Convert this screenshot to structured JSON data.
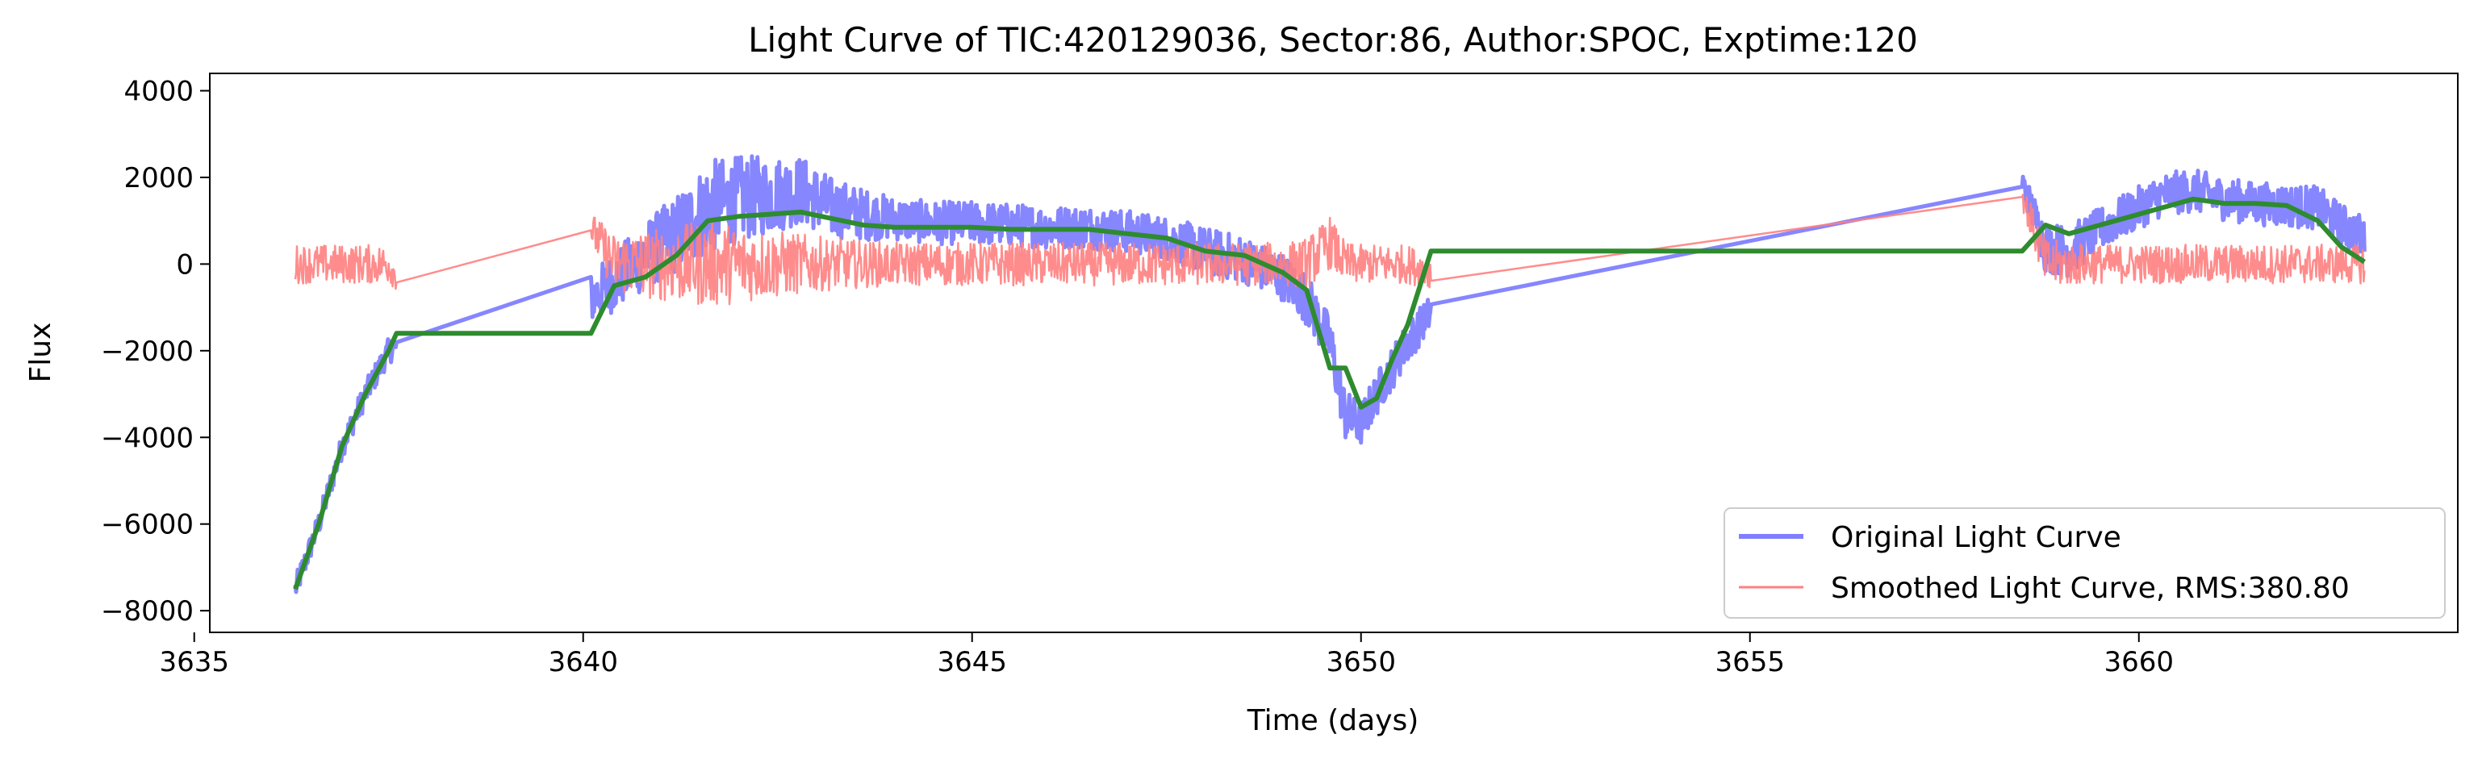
{
  "chart_data": {
    "type": "line",
    "title": "Light Curve of TIC:420129036, Sector:86, Author:SPOC, Exptime:120",
    "xlabel": "Time (days)",
    "ylabel": "Flux",
    "xlim": [
      3635.2,
      3664.1
    ],
    "ylim": [
      -8500,
      4400
    ],
    "xticks": [
      3635,
      3640,
      3645,
      3650,
      3655,
      3660
    ],
    "yticks": [
      -8000,
      -6000,
      -4000,
      -2000,
      0,
      2000,
      4000
    ],
    "grid": false,
    "legend_position": "lower-right",
    "series": [
      {
        "name": "Original Light Curve",
        "color": "#7f7fff",
        "style": "noisy-band",
        "x": [
          3636.3,
          3636.6,
          3636.9,
          3637.2,
          3637.5,
          3637.6,
          3640.1,
          3640.4,
          3640.8,
          3641.2,
          3641.6,
          3642.0,
          3642.4,
          3642.8,
          3643.2,
          3643.6,
          3644.0,
          3644.5,
          3645.0,
          3645.5,
          3646.0,
          3646.5,
          3647.0,
          3647.5,
          3648.0,
          3648.5,
          3649.0,
          3649.3,
          3649.6,
          3649.8,
          3650.0,
          3650.2,
          3650.4,
          3650.6,
          3650.9,
          3658.5,
          3658.8,
          3659.1,
          3659.5,
          3659.9,
          3660.3,
          3660.7,
          3661.1,
          3661.5,
          3661.9,
          3662.3,
          3662.6,
          3662.9
        ],
        "values": [
          -7500,
          -6000,
          -4200,
          -3000,
          -2000,
          -1900,
          -800,
          -400,
          200,
          700,
          1300,
          1500,
          1600,
          1700,
          1300,
          1150,
          1050,
          950,
          950,
          900,
          850,
          850,
          750,
          600,
          300,
          100,
          -300,
          -800,
          -1800,
          -3500,
          -3700,
          -3000,
          -2400,
          -1800,
          -1100,
          1900,
          400,
          300,
          800,
          1200,
          1600,
          1700,
          1500,
          1400,
          1350,
          1300,
          900,
          600
        ],
        "spread": [
          300,
          300,
          300,
          300,
          300,
          300,
          600,
          700,
          800,
          900,
          1100,
          1000,
          900,
          800,
          700,
          600,
          500,
          500,
          500,
          500,
          500,
          500,
          500,
          500,
          550,
          550,
          550,
          600,
          600,
          600,
          500,
          500,
          500,
          500,
          400,
          300,
          600,
          600,
          500,
          500,
          500,
          500,
          500,
          500,
          500,
          500,
          500,
          500
        ]
      },
      {
        "name": "Smoothed Light Curve, RMS:380.80",
        "color": "#ff8080",
        "style": "noisy-band",
        "x": [
          3636.3,
          3636.6,
          3636.9,
          3637.2,
          3637.5,
          3637.6,
          3640.1,
          3640.4,
          3640.8,
          3641.2,
          3641.6,
          3642.0,
          3642.4,
          3642.8,
          3643.2,
          3643.6,
          3644.0,
          3644.5,
          3645.0,
          3645.5,
          3646.0,
          3646.5,
          3647.0,
          3647.5,
          3648.0,
          3648.5,
          3649.0,
          3649.3,
          3649.6,
          3649.8,
          3650.0,
          3650.2,
          3650.4,
          3650.6,
          3650.9,
          3658.5,
          3658.8,
          3659.1,
          3659.5,
          3659.9,
          3660.3,
          3660.7,
          3661.1,
          3661.5,
          3661.9,
          3662.3,
          3662.6,
          3662.9
        ],
        "values": [
          0,
          0,
          0,
          0,
          0,
          -300,
          800,
          0,
          0,
          0,
          0,
          0,
          0,
          0,
          0,
          0,
          0,
          0,
          0,
          0,
          0,
          0,
          0,
          0,
          0,
          0,
          0,
          0,
          500,
          0,
          0,
          0,
          0,
          0,
          -200,
          1600,
          0,
          0,
          0,
          0,
          0,
          0,
          0,
          0,
          0,
          0,
          0,
          0
        ],
        "spread": [
          450,
          450,
          450,
          450,
          450,
          300,
          400,
          700,
          800,
          900,
          1000,
          900,
          800,
          700,
          600,
          550,
          500,
          500,
          500,
          500,
          500,
          500,
          500,
          500,
          500,
          500,
          500,
          600,
          600,
          500,
          450,
          450,
          450,
          450,
          400,
          300,
          600,
          500,
          450,
          450,
          450,
          450,
          450,
          450,
          450,
          450,
          450,
          450
        ]
      },
      {
        "name": "",
        "color": "#2e8b2e",
        "style": "line",
        "x": [
          3636.3,
          3636.6,
          3636.9,
          3637.2,
          3637.5,
          3637.6,
          3640.1,
          3640.4,
          3640.8,
          3641.2,
          3641.6,
          3642.0,
          3642.4,
          3642.8,
          3643.2,
          3643.6,
          3644.0,
          3644.5,
          3645.0,
          3645.5,
          3646.0,
          3646.5,
          3647.0,
          3647.5,
          3648.0,
          3648.5,
          3649.0,
          3649.3,
          3649.6,
          3649.8,
          3650.0,
          3650.2,
          3650.4,
          3650.6,
          3650.9,
          3658.5,
          3658.8,
          3659.1,
          3659.5,
          3659.9,
          3660.3,
          3660.7,
          3661.1,
          3661.5,
          3661.9,
          3662.3,
          3662.6,
          3662.9
        ],
        "values": [
          -7500,
          -6000,
          -4200,
          -3000,
          -2000,
          -1600,
          -1600,
          -500,
          -300,
          200,
          1000,
          1100,
          1150,
          1200,
          1050,
          900,
          850,
          850,
          850,
          800,
          800,
          800,
          700,
          600,
          300,
          200,
          -200,
          -600,
          -2400,
          -2400,
          -3300,
          -3100,
          -2200,
          -1400,
          300,
          300,
          900,
          700,
          900,
          1100,
          1300,
          1500,
          1400,
          1400,
          1350,
          1000,
          400,
          50
        ]
      }
    ]
  }
}
